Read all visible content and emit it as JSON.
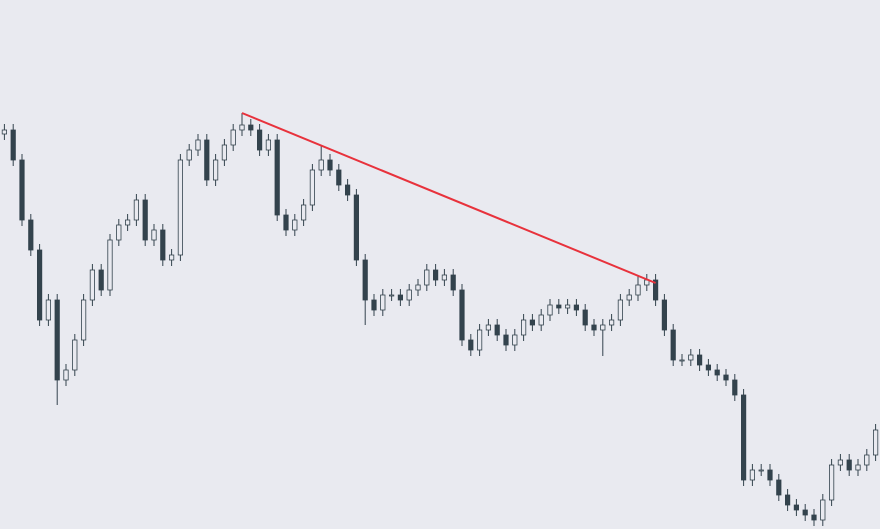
{
  "chart_data": {
    "type": "candlestick",
    "xlim": [
      -0.5,
      99.5
    ],
    "ylim": [
      0,
      529
    ],
    "background": "#e9eaf0",
    "up_color": "#e9eaf0",
    "down_color": "#33434d",
    "wick_color": "#33434d",
    "open": [
      395,
      399,
      369,
      309,
      279,
      209,
      229,
      149,
      159,
      189,
      229,
      259,
      239,
      289,
      304,
      309,
      329,
      289,
      299,
      269,
      274,
      369,
      379,
      389,
      349,
      369,
      384,
      399,
      404,
      399,
      379,
      389,
      314,
      299,
      309,
      324,
      359,
      369,
      359,
      344,
      334,
      269,
      229,
      219,
      234,
      234,
      229,
      239,
      244,
      259,
      249,
      254,
      239,
      189,
      179,
      199,
      204,
      194,
      184,
      194,
      209,
      204,
      214,
      224,
      221,
      224,
      219,
      204,
      199,
      204,
      209,
      229,
      234,
      244,
      249,
      229,
      199,
      169,
      169,
      174,
      164,
      159,
      154,
      149,
      134,
      49,
      59,
      59,
      49,
      34,
      24,
      19,
      14,
      9,
      29,
      64,
      69,
      59,
      64,
      74
    ],
    "high": [
      405,
      405,
      375,
      315,
      285,
      235,
      235,
      165,
      195,
      235,
      265,
      265,
      295,
      310,
      315,
      335,
      335,
      305,
      305,
      280,
      375,
      385,
      395,
      395,
      375,
      390,
      405,
      416,
      410,
      405,
      395,
      395,
      320,
      315,
      330,
      365,
      383,
      375,
      365,
      350,
      340,
      275,
      235,
      240,
      240,
      240,
      245,
      250,
      265,
      265,
      260,
      260,
      245,
      195,
      205,
      210,
      210,
      200,
      200,
      215,
      215,
      220,
      230,
      230,
      230,
      230,
      225,
      210,
      210,
      215,
      235,
      240,
      254,
      255,
      255,
      235,
      205,
      175,
      180,
      180,
      170,
      165,
      160,
      155,
      140,
      65,
      65,
      65,
      55,
      40,
      30,
      25,
      20,
      35,
      70,
      75,
      75,
      70,
      80,
      105
    ],
    "low": [
      389,
      363,
      303,
      273,
      203,
      203,
      124,
      143,
      153,
      183,
      223,
      233,
      233,
      283,
      298,
      303,
      283,
      283,
      263,
      263,
      268,
      363,
      373,
      343,
      343,
      363,
      378,
      393,
      393,
      373,
      373,
      308,
      293,
      293,
      303,
      318,
      353,
      353,
      338,
      328,
      263,
      204,
      213,
      213,
      228,
      223,
      223,
      233,
      238,
      243,
      243,
      233,
      183,
      173,
      173,
      193,
      188,
      178,
      178,
      188,
      198,
      198,
      208,
      215,
      215,
      213,
      198,
      193,
      173,
      198,
      203,
      223,
      228,
      238,
      223,
      193,
      163,
      163,
      163,
      158,
      153,
      148,
      143,
      128,
      43,
      43,
      53,
      43,
      28,
      18,
      13,
      8,
      3,
      3,
      23,
      58,
      53,
      53,
      58,
      68
    ],
    "close": [
      399,
      369,
      309,
      279,
      209,
      229,
      149,
      159,
      189,
      229,
      259,
      239,
      289,
      304,
      309,
      329,
      289,
      299,
      269,
      274,
      369,
      379,
      389,
      349,
      369,
      384,
      399,
      404,
      399,
      379,
      389,
      314,
      299,
      309,
      324,
      359,
      369,
      359,
      344,
      334,
      269,
      229,
      219,
      234,
      234,
      229,
      239,
      244,
      259,
      249,
      254,
      239,
      189,
      179,
      199,
      204,
      194,
      184,
      194,
      209,
      204,
      214,
      224,
      221,
      224,
      219,
      204,
      199,
      204,
      209,
      229,
      234,
      244,
      249,
      229,
      199,
      169,
      169,
      174,
      164,
      159,
      154,
      149,
      134,
      49,
      59,
      59,
      49,
      34,
      24,
      19,
      14,
      9,
      29,
      64,
      69,
      59,
      64,
      74,
      99
    ],
    "trendline": {
      "color": "#e8323c",
      "x": [
        27,
        74
      ],
      "values": [
        416,
        246
      ]
    }
  }
}
